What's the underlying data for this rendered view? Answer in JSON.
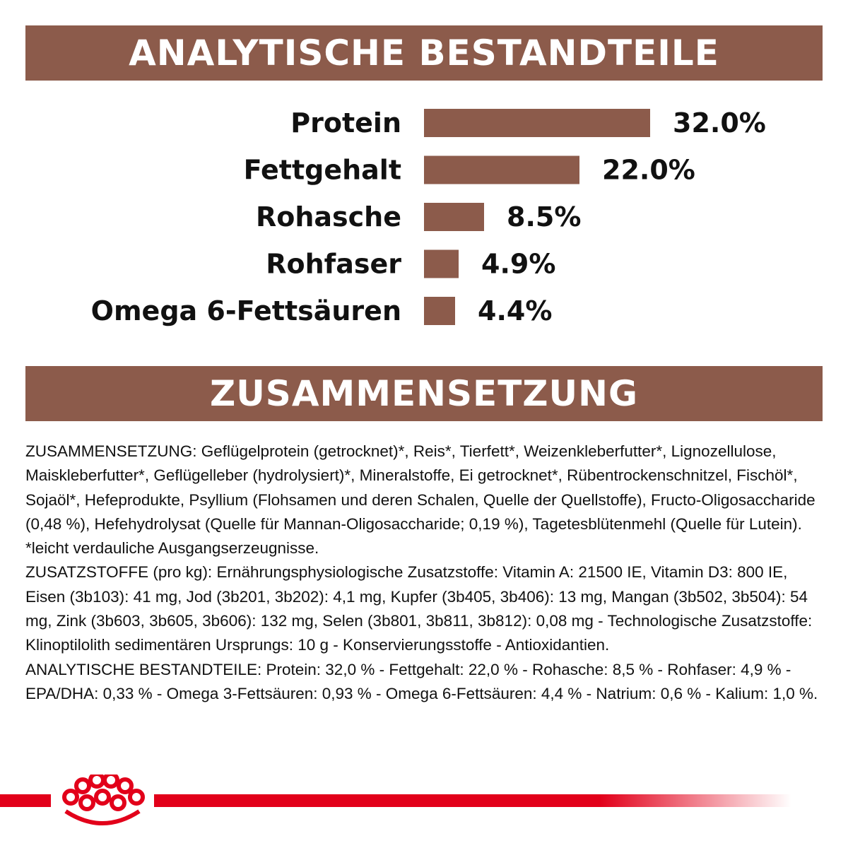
{
  "header": {
    "title": "ANALYTISCHE BESTANDTEILE"
  },
  "chart_data": {
    "type": "bar",
    "orientation": "horizontal",
    "categories": [
      "Protein",
      "Fettgehalt",
      "Rohasche",
      "Rohfaser",
      "Omega 6-Fettsäuren"
    ],
    "values": [
      32.0,
      22.0,
      8.5,
      4.9,
      4.4
    ],
    "value_labels": [
      "32.0%",
      "22.0%",
      "8.5%",
      "4.9%",
      "4.4%"
    ],
    "unit": "%",
    "bar_color": "#8c5b4b",
    "grid": false
  },
  "section2": {
    "title": "ZUSAMMENSETZUNG"
  },
  "composition": {
    "paragraphs": [
      "ZUSAMMENSETZUNG: Geflügelprotein (getrocknet)*, Reis*, Tierfett*, Weizenkleberfutter*, Lignozellulose, Maiskleberfutter*, Geflügelleber (hydrolysiert)*, Mineralstoffe, Ei getrocknet*, Rübentrockenschnitzel, Fischöl*, Sojaöl*, Hefeprodukte, Psyllium (Flohsamen und deren Schalen, Quelle der Quellstoffe), Fructo-Oligosaccharide (0,48 %), Hefehydrolysat (Quelle für Mannan-Oligosaccharide; 0,19 %), Tagetesblütenmehl (Quelle für Lutein). *leicht verdauliche Ausgangserzeugnisse.",
      "ZUSATZSTOFFE (pro kg): Ernährungsphysiologische Zusatzstoffe: Vitamin A: 21500 IE, Vitamin D3: 800 IE, Eisen (3b103): 41 mg, Jod (3b201, 3b202): 4,1 mg, Kupfer (3b405, 3b406): 13 mg, Mangan (3b502, 3b504): 54 mg, Zink (3b603, 3b605, 3b606): 132 mg, Selen (3b801, 3b811, 3b812): 0,08 mg - Technologische Zusatzstoffe: Klinoptilolith sedimentären Ursprungs: 10 g - Konservierungsstoffe - Antioxidantien.",
      "ANALYTISCHE BESTANDTEILE: Protein: 32,0 % - Fettgehalt: 22,0 % - Rohasche: 8,5 % - Rohfaser: 4,9 % - EPA/DHA: 0,33 % - Omega 3-Fettsäuren: 0,93 % - Omega 6-Fettsäuren: 4,4 % - Natrium: 0,6 % - Kalium: 1,0 %."
    ]
  },
  "footer": {
    "logo_icon": "royal-canin-crown-icon",
    "line_color": "#e2001a"
  }
}
